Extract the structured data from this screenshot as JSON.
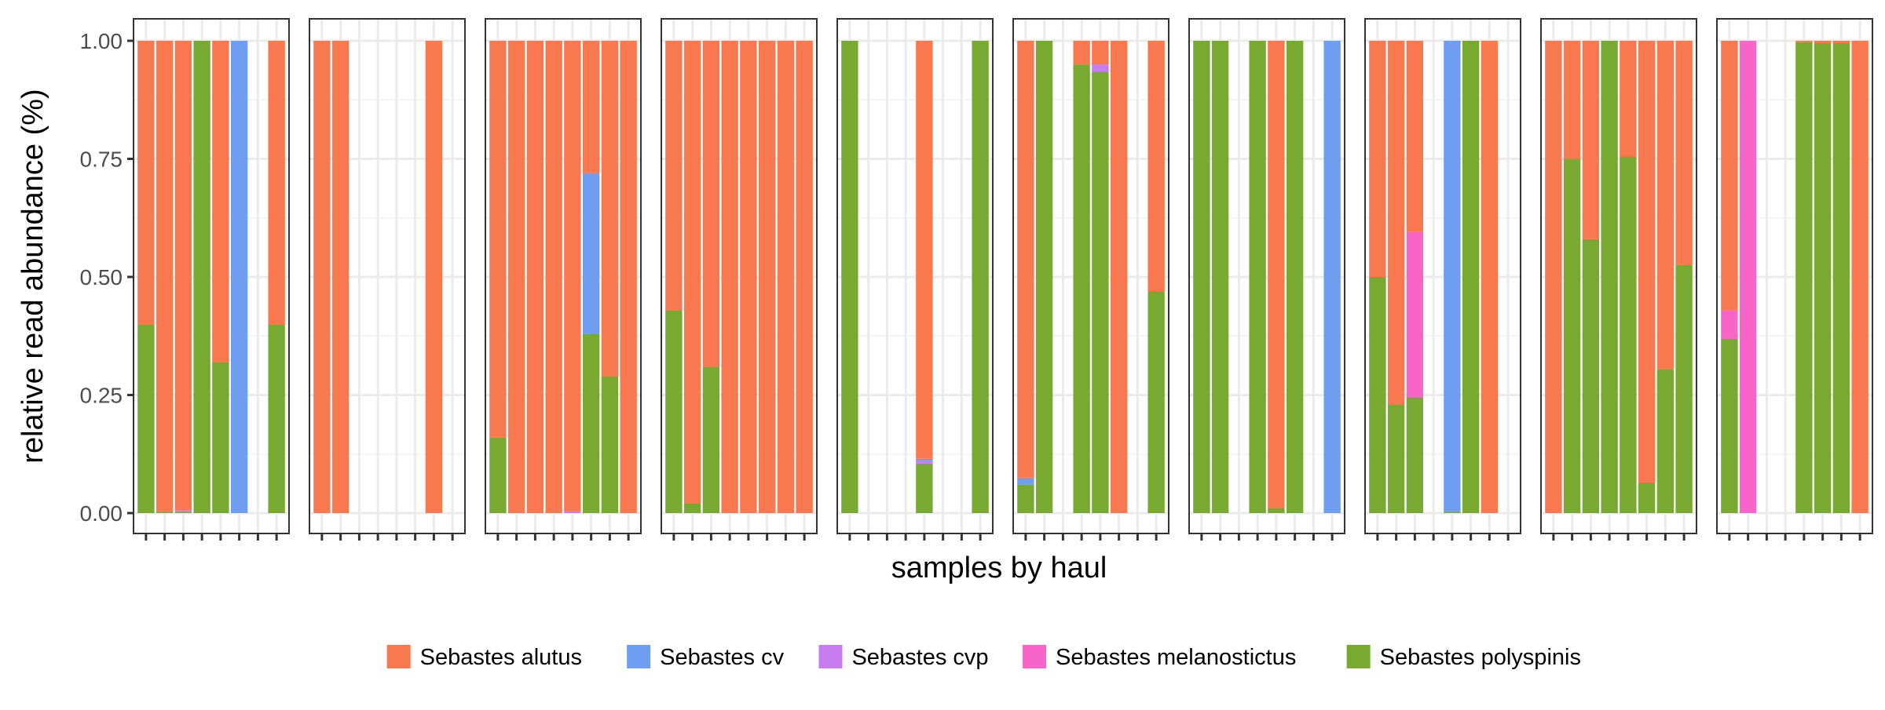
{
  "chart_data": {
    "type": "bar",
    "stacked": true,
    "faceted": true,
    "ylabel": "relative read abundance (%)",
    "xlabel": "samples by haul",
    "ylim": [
      0,
      1
    ],
    "yticks": [
      "0.00",
      "0.25",
      "0.50",
      "0.75",
      "1.00"
    ],
    "grid": true,
    "legend_position": "bottom",
    "species": [
      {
        "name": "Sebastes alutus",
        "color": "#F8784F"
      },
      {
        "name": "Sebastes cv",
        "color": "#6F9DF0"
      },
      {
        "name": "Sebastes cvp",
        "color": "#C77CF0"
      },
      {
        "name": "Sebastes melanostictus",
        "color": "#F765C8"
      },
      {
        "name": "Sebastes polyspinis",
        "color": "#78AA32"
      }
    ],
    "stack_order_bottom_to_top": [
      "Sebastes polyspinis",
      "Sebastes melanostictus",
      "Sebastes cvp",
      "Sebastes cv",
      "Sebastes alutus"
    ],
    "samples_per_panel": 8,
    "panels": [
      {
        "bars": [
          {
            "Sebastes polyspinis": 0.4,
            "Sebastes alutus": 0.6
          },
          {
            "Sebastes polyspinis": 0.003,
            "Sebastes alutus": 0.997
          },
          {
            "Sebastes polyspinis": 0.003,
            "Sebastes cvp": 0.003,
            "Sebastes alutus": 0.994
          },
          {
            "Sebastes polyspinis": 1.0
          },
          {
            "Sebastes polyspinis": 0.32,
            "Sebastes alutus": 0.68
          },
          {
            "Sebastes cv": 1.0
          },
          null,
          {
            "Sebastes polyspinis": 0.4,
            "Sebastes alutus": 0.6
          }
        ]
      },
      {
        "bars": [
          {
            "Sebastes alutus": 1.0
          },
          {
            "Sebastes alutus": 1.0
          },
          null,
          null,
          null,
          null,
          {
            "Sebastes alutus": 1.0
          },
          null
        ]
      },
      {
        "bars": [
          {
            "Sebastes polyspinis": 0.16,
            "Sebastes alutus": 0.84
          },
          {
            "Sebastes alutus": 1.0
          },
          {
            "Sebastes alutus": 1.0
          },
          {
            "Sebastes alutus": 1.0
          },
          {
            "Sebastes cvp": 0.005,
            "Sebastes alutus": 0.995
          },
          {
            "Sebastes polyspinis": 0.38,
            "Sebastes cv": 0.34,
            "Sebastes alutus": 0.28
          },
          {
            "Sebastes polyspinis": 0.29,
            "Sebastes alutus": 0.71
          },
          {
            "Sebastes alutus": 1.0
          }
        ]
      },
      {
        "bars": [
          {
            "Sebastes polyspinis": 0.43,
            "Sebastes alutus": 0.57
          },
          {
            "Sebastes polyspinis": 0.02,
            "Sebastes alutus": 0.98
          },
          {
            "Sebastes polyspinis": 0.31,
            "Sebastes alutus": 0.69
          },
          {
            "Sebastes alutus": 1.0
          },
          {
            "Sebastes alutus": 1.0
          },
          {
            "Sebastes alutus": 1.0
          },
          {
            "Sebastes alutus": 1.0
          },
          {
            "Sebastes alutus": 1.0
          }
        ]
      },
      {
        "bars": [
          {
            "Sebastes polyspinis": 1.0
          },
          null,
          null,
          null,
          {
            "Sebastes polyspinis": 0.105,
            "Sebastes cv": 0.005,
            "Sebastes cvp": 0.005,
            "Sebastes alutus": 0.885
          },
          null,
          null,
          {
            "Sebastes polyspinis": 1.0
          }
        ]
      },
      {
        "bars": [
          {
            "Sebastes polyspinis": 0.06,
            "Sebastes cv": 0.015,
            "Sebastes alutus": 0.925
          },
          {
            "Sebastes polyspinis": 1.0
          },
          null,
          {
            "Sebastes polyspinis": 0.95,
            "Sebastes alutus": 0.05
          },
          {
            "Sebastes polyspinis": 0.935,
            "Sebastes cvp": 0.015,
            "Sebastes alutus": 0.05
          },
          {
            "Sebastes alutus": 1.0
          },
          null,
          {
            "Sebastes polyspinis": 0.47,
            "Sebastes alutus": 0.53
          }
        ]
      },
      {
        "bars": [
          {
            "Sebastes polyspinis": 1.0
          },
          {
            "Sebastes polyspinis": 1.0
          },
          null,
          {
            "Sebastes polyspinis": 1.0
          },
          {
            "Sebastes polyspinis": 0.01,
            "Sebastes alutus": 0.99
          },
          {
            "Sebastes polyspinis": 1.0
          },
          null,
          {
            "Sebastes cv": 1.0
          }
        ]
      },
      {
        "bars": [
          {
            "Sebastes polyspinis": 0.5,
            "Sebastes alutus": 0.5
          },
          {
            "Sebastes polyspinis": 0.23,
            "Sebastes alutus": 0.77
          },
          {
            "Sebastes polyspinis": 0.245,
            "Sebastes melanostictus": 0.35,
            "Sebastes alutus": 0.405
          },
          null,
          {
            "Sebastes polyspinis": 0.003,
            "Sebastes cv": 0.997
          },
          {
            "Sebastes polyspinis": 1.0
          },
          {
            "Sebastes alutus": 1.0
          },
          null
        ]
      },
      {
        "bars": [
          {
            "Sebastes alutus": 1.0
          },
          {
            "Sebastes polyspinis": 0.75,
            "Sebastes alutus": 0.25
          },
          {
            "Sebastes polyspinis": 0.58,
            "Sebastes alutus": 0.42
          },
          {
            "Sebastes polyspinis": 1.0
          },
          {
            "Sebastes polyspinis": 0.755,
            "Sebastes alutus": 0.245
          },
          {
            "Sebastes polyspinis": 0.065,
            "Sebastes alutus": 0.935
          },
          {
            "Sebastes polyspinis": 0.305,
            "Sebastes alutus": 0.695
          },
          {
            "Sebastes polyspinis": 0.525,
            "Sebastes alutus": 0.475
          }
        ]
      },
      {
        "bars": [
          {
            "Sebastes polyspinis": 0.37,
            "Sebastes melanostictus": 0.06,
            "Sebastes alutus": 0.57
          },
          {
            "Sebastes melanostictus": 1.0
          },
          null,
          null,
          {
            "Sebastes polyspinis": 0.997,
            "Sebastes alutus": 0.003
          },
          {
            "Sebastes polyspinis": 0.995,
            "Sebastes alutus": 0.005
          },
          {
            "Sebastes polyspinis": 0.995,
            "Sebastes alutus": 0.005
          },
          {
            "Sebastes alutus": 1.0
          }
        ]
      }
    ]
  }
}
